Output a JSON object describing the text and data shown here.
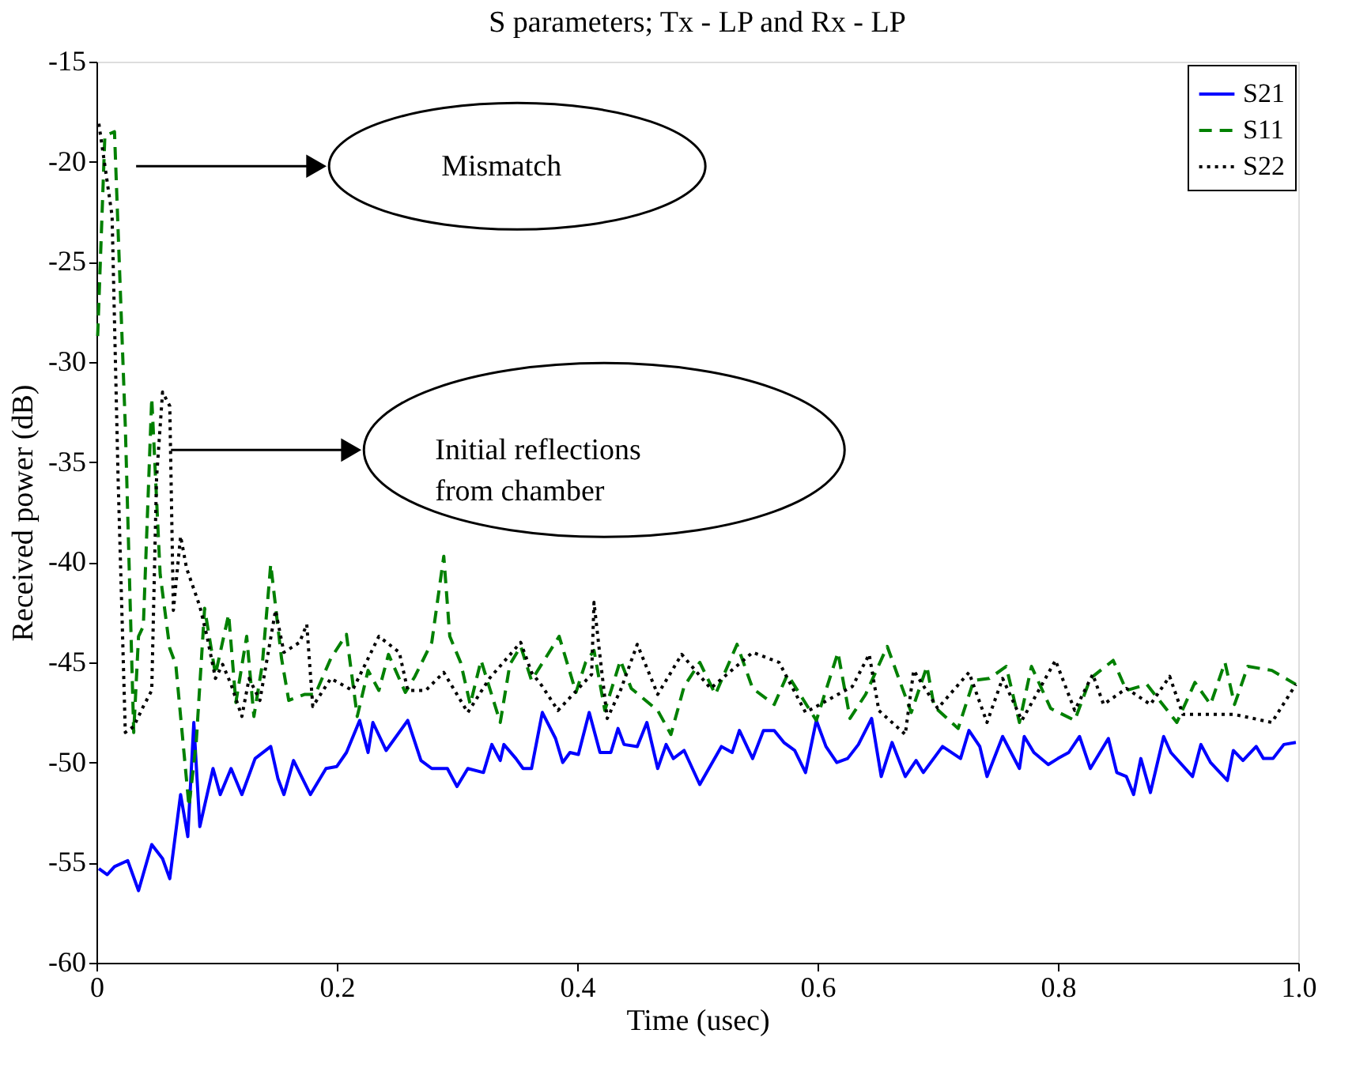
{
  "chart_data": {
    "type": "line",
    "title": "S parameters; Tx - LP and Rx - LP",
    "xlabel": "Time (usec)",
    "ylabel": "Received power (dB)",
    "xlim": [
      0,
      1
    ],
    "ylim": [
      -60,
      -15
    ],
    "xticks": [
      0,
      0.2,
      0.4,
      0.6,
      0.8,
      {
        "value": 1,
        "label": "1.0"
      }
    ],
    "yticks": [
      -60,
      -55,
      -50,
      -45,
      -40,
      -35,
      -30,
      -25,
      -20,
      -15
    ],
    "grid": false,
    "legend": "top right",
    "marker": "none",
    "series": [
      {
        "name": "S21",
        "color": "#0000ff",
        "line_style": "solid",
        "x": [
          0.002,
          0.009,
          0.015,
          0.026,
          0.035,
          0.046,
          0.055,
          0.061,
          0.07,
          0.076,
          0.081,
          0.086,
          0.097,
          0.103,
          0.112,
          0.121,
          0.132,
          0.145,
          0.151,
          0.156,
          0.164,
          0.178,
          0.191,
          0.2,
          0.208,
          0.219,
          0.226,
          0.23,
          0.241,
          0.259,
          0.27,
          0.279,
          0.292,
          0.3,
          0.309,
          0.322,
          0.329,
          0.336,
          0.339,
          0.349,
          0.355,
          0.362,
          0.371,
          0.382,
          0.388,
          0.394,
          0.401,
          0.41,
          0.419,
          0.428,
          0.434,
          0.439,
          0.45,
          0.458,
          0.467,
          0.474,
          0.48,
          0.489,
          0.502,
          0.52,
          0.529,
          0.535,
          0.546,
          0.555,
          0.564,
          0.572,
          0.581,
          0.59,
          0.599,
          0.607,
          0.616,
          0.625,
          0.634,
          0.645,
          0.653,
          0.662,
          0.673,
          0.682,
          0.688,
          0.704,
          0.719,
          0.726,
          0.735,
          0.741,
          0.754,
          0.768,
          0.772,
          0.78,
          0.792,
          0.8,
          0.809,
          0.818,
          0.827,
          0.842,
          0.849,
          0.857,
          0.863,
          0.869,
          0.877,
          0.888,
          0.894,
          0.912,
          0.919,
          0.927,
          0.941,
          0.946,
          0.954,
          0.965,
          0.971,
          0.979,
          0.988,
          0.998
        ],
        "values": [
          -55.3,
          -55.6,
          -55.2,
          -54.9,
          -56.4,
          -54.1,
          -54.8,
          -55.8,
          -51.6,
          -53.7,
          -48,
          -53.2,
          -50.3,
          -51.6,
          -50.3,
          -51.6,
          -49.8,
          -49.2,
          -50.8,
          -51.6,
          -49.9,
          -51.6,
          -50.3,
          -50.2,
          -49.5,
          -47.9,
          -49.5,
          -48,
          -49.4,
          -47.9,
          -49.9,
          -50.3,
          -50.3,
          -51.2,
          -50.3,
          -50.5,
          -49.1,
          -49.9,
          -49.1,
          -49.8,
          -50.3,
          -50.3,
          -47.5,
          -48.8,
          -50,
          -49.5,
          -49.6,
          -47.5,
          -49.5,
          -49.5,
          -48.3,
          -49.1,
          -49.2,
          -48,
          -50.3,
          -49.1,
          -49.8,
          -49.4,
          -51.1,
          -49.2,
          -49.5,
          -48.4,
          -49.8,
          -48.4,
          -48.4,
          -49,
          -49.4,
          -50.5,
          -47.9,
          -49.2,
          -50,
          -49.8,
          -49.1,
          -47.8,
          -50.7,
          -49,
          -50.7,
          -49.9,
          -50.5,
          -49.2,
          -49.8,
          -48.4,
          -49.2,
          -50.7,
          -48.7,
          -50.3,
          -48.7,
          -49.5,
          -50.1,
          -49.8,
          -49.5,
          -48.7,
          -50.3,
          -48.8,
          -50.5,
          -50.7,
          -51.6,
          -49.8,
          -51.5,
          -48.7,
          -49.5,
          -50.7,
          -49.1,
          -50,
          -50.9,
          -49.4,
          -49.9,
          -49.2,
          -49.8,
          -49.8,
          -49.1,
          -49
        ]
      },
      {
        "name": "S11",
        "color": "#008000",
        "line_style": "dashed",
        "x": [
          0.001,
          0.007,
          0.015,
          0.024,
          0.031,
          0.035,
          0.039,
          0.046,
          0.053,
          0.061,
          0.066,
          0.077,
          0.083,
          0.09,
          0.099,
          0.11,
          0.116,
          0.125,
          0.131,
          0.138,
          0.145,
          0.154,
          0.16,
          0.173,
          0.182,
          0.195,
          0.208,
          0.217,
          0.226,
          0.235,
          0.243,
          0.257,
          0.265,
          0.279,
          0.289,
          0.294,
          0.303,
          0.311,
          0.32,
          0.336,
          0.344,
          0.353,
          0.362,
          0.385,
          0.399,
          0.407,
          0.414,
          0.423,
          0.436,
          0.445,
          0.467,
          0.478,
          0.489,
          0.502,
          0.515,
          0.533,
          0.546,
          0.564,
          0.575,
          0.599,
          0.617,
          0.627,
          0.64,
          0.658,
          0.667,
          0.678,
          0.691,
          0.697,
          0.717,
          0.73,
          0.743,
          0.757,
          0.768,
          0.778,
          0.794,
          0.814,
          0.827,
          0.846,
          0.857,
          0.874,
          0.899,
          0.914,
          0.927,
          0.939,
          0.947,
          0.958,
          0.978,
          0.998
        ],
        "values": [
          -28.7,
          -18.7,
          -18.5,
          -33.2,
          -48.5,
          -43.7,
          -43.2,
          -31.8,
          -40.6,
          -44.3,
          -45.1,
          -52.2,
          -49,
          -42.3,
          -45.6,
          -42.6,
          -47,
          -43.7,
          -47.7,
          -45.1,
          -40.1,
          -44.8,
          -46.9,
          -46.6,
          -46.6,
          -44.8,
          -43.6,
          -47.7,
          -45.4,
          -46.4,
          -44.6,
          -46.5,
          -45.7,
          -44,
          -39.7,
          -43.7,
          -45,
          -47.1,
          -44.9,
          -48,
          -45.1,
          -44.2,
          -45.9,
          -43.7,
          -46.5,
          -45,
          -44.4,
          -47.4,
          -44.9,
          -46.3,
          -47.4,
          -48.6,
          -46.2,
          -45,
          -46.6,
          -44.1,
          -46.3,
          -47.1,
          -45.6,
          -47.9,
          -44.5,
          -47.8,
          -46.6,
          -44.2,
          -45.7,
          -47.5,
          -45.2,
          -47.2,
          -48.3,
          -45.9,
          -45.8,
          -45.2,
          -48,
          -45.2,
          -47.3,
          -47.9,
          -45.8,
          -44.9,
          -46.4,
          -46.1,
          -48,
          -46,
          -47.1,
          -45,
          -47.1,
          -45.2,
          -45.4,
          -46.1
        ]
      },
      {
        "name": "S22",
        "color": "#000000",
        "line_style": "dotted",
        "x": [
          0.002,
          0.013,
          0.018,
          0.024,
          0.031,
          0.039,
          0.046,
          0.05,
          0.055,
          0.061,
          0.064,
          0.07,
          0.075,
          0.086,
          0.092,
          0.099,
          0.105,
          0.112,
          0.121,
          0.127,
          0.136,
          0.149,
          0.156,
          0.169,
          0.175,
          0.18,
          0.195,
          0.213,
          0.235,
          0.252,
          0.259,
          0.274,
          0.289,
          0.309,
          0.327,
          0.353,
          0.362,
          0.371,
          0.384,
          0.412,
          0.414,
          0.419,
          0.425,
          0.436,
          0.45,
          0.467,
          0.487,
          0.511,
          0.546,
          0.568,
          0.59,
          0.629,
          0.643,
          0.651,
          0.673,
          0.68,
          0.7,
          0.726,
          0.741,
          0.754,
          0.77,
          0.798,
          0.814,
          0.829,
          0.838,
          0.857,
          0.877,
          0.893,
          0.904,
          0.947,
          0.978,
          0.998
        ],
        "values": [
          -18.1,
          -22.7,
          -35.8,
          -48.5,
          -48.2,
          -47.2,
          -46.4,
          -35.8,
          -31.5,
          -32.2,
          -42.4,
          -38.7,
          -40.3,
          -42.2,
          -43.7,
          -45.8,
          -45.1,
          -46.1,
          -47.7,
          -45.8,
          -46.9,
          -42.4,
          -44.5,
          -44,
          -43.1,
          -47.2,
          -45.8,
          -46.4,
          -43.7,
          -44.5,
          -46.4,
          -46.4,
          -45.5,
          -47.5,
          -45.8,
          -44,
          -45.5,
          -46.2,
          -47.4,
          -45.6,
          -42,
          -44.7,
          -47.8,
          -46.4,
          -44.1,
          -46.6,
          -44.6,
          -46.3,
          -44.5,
          -45,
          -47.5,
          -46.2,
          -44.6,
          -47.4,
          -48.6,
          -45.4,
          -47.3,
          -45.5,
          -48,
          -45.8,
          -47.9,
          -44.9,
          -47.4,
          -45.6,
          -47.1,
          -46.3,
          -47.1,
          -45.7,
          -47.6,
          -47.6,
          -48,
          -46.1
        ]
      }
    ],
    "annotations": [
      "Mismatch",
      "Initial reflections\nfrom chamber"
    ]
  }
}
